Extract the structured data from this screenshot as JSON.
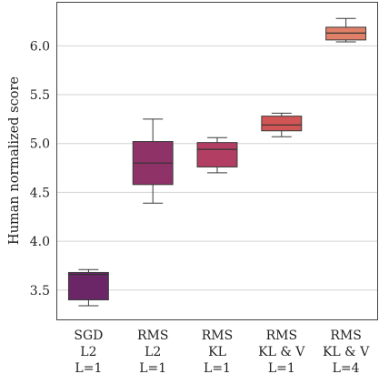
{
  "chart_data": {
    "type": "box",
    "ylabel": "Human normalized score",
    "xlabel": "",
    "title": "",
    "ylim": [
      3.2,
      6.45
    ],
    "yticks": [
      3.5,
      4.0,
      4.5,
      5.0,
      5.5,
      6.0
    ],
    "ytick_labels": [
      "3.5",
      "4.0",
      "4.5",
      "5.0",
      "5.5",
      "6.0"
    ],
    "grid": "horizontal",
    "legend": "none",
    "categories": [
      {
        "lines": [
          "SGD",
          "L2",
          "L=1"
        ],
        "color": "#6b2668"
      },
      {
        "lines": [
          "RMS",
          "L2",
          "L=1"
        ],
        "color": "#8e3268"
      },
      {
        "lines": [
          "RMS",
          "KL",
          "L=1"
        ],
        "color": "#b23f63"
      },
      {
        "lines": [
          "RMS",
          "KL & V",
          "L=1"
        ],
        "color": "#d15554"
      },
      {
        "lines": [
          "RMS",
          "KL & V",
          "L=4"
        ],
        "color": "#e08068"
      }
    ],
    "boxes": [
      {
        "whisker_low": 3.34,
        "q1": 3.4,
        "median": 3.66,
        "q3": 3.68,
        "whisker_high": 3.71
      },
      {
        "whisker_low": 4.39,
        "q1": 4.58,
        "median": 4.8,
        "q3": 5.02,
        "whisker_high": 5.25
      },
      {
        "whisker_low": 4.7,
        "q1": 4.76,
        "median": 4.94,
        "q3": 5.01,
        "whisker_high": 5.06
      },
      {
        "whisker_low": 5.07,
        "q1": 5.13,
        "median": 5.19,
        "q3": 5.28,
        "whisker_high": 5.31
      },
      {
        "whisker_low": 6.04,
        "q1": 6.06,
        "median": 6.13,
        "q3": 6.19,
        "whisker_high": 6.28
      }
    ]
  }
}
